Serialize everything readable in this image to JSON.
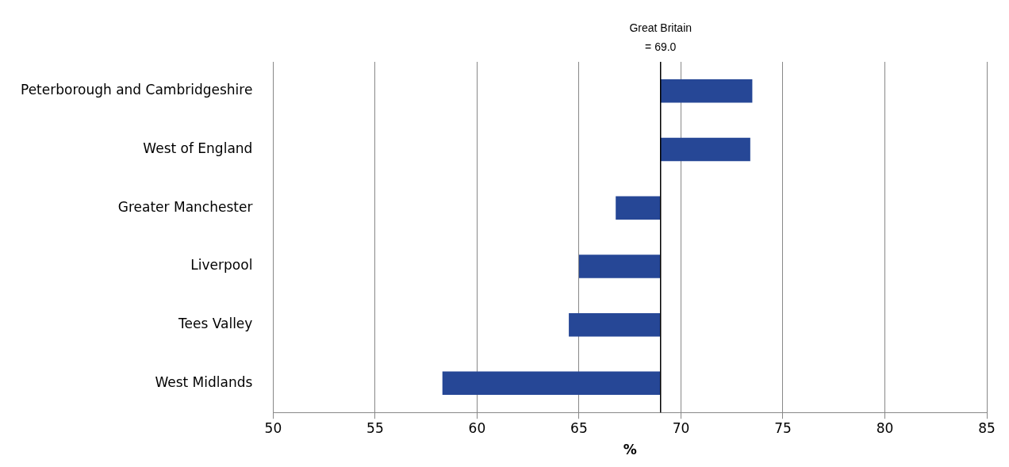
{
  "chart_data": {
    "type": "bar",
    "orientation": "horizontal",
    "xlabel": "%",
    "categories": [
      "Peterborough and Cambridgeshire",
      "West of England",
      "Greater Manchester",
      "Liverpool",
      "Tees Valley",
      "West Midlands"
    ],
    "base": [
      69,
      69,
      69,
      69,
      69,
      69
    ],
    "values": [
      4.5,
      4.4,
      -2.2,
      -4.0,
      -4.5,
      -10.7
    ],
    "color": "#264796",
    "xlim": [
      50,
      85
    ],
    "xticks": [
      50,
      55,
      60,
      65,
      70,
      75,
      80,
      85
    ],
    "grid": "x",
    "legend": false,
    "ref_lines": [
      {
        "axis": "x",
        "value": 69.0,
        "label": "Great Britain\n= 69.0",
        "color": "#000000"
      }
    ]
  }
}
